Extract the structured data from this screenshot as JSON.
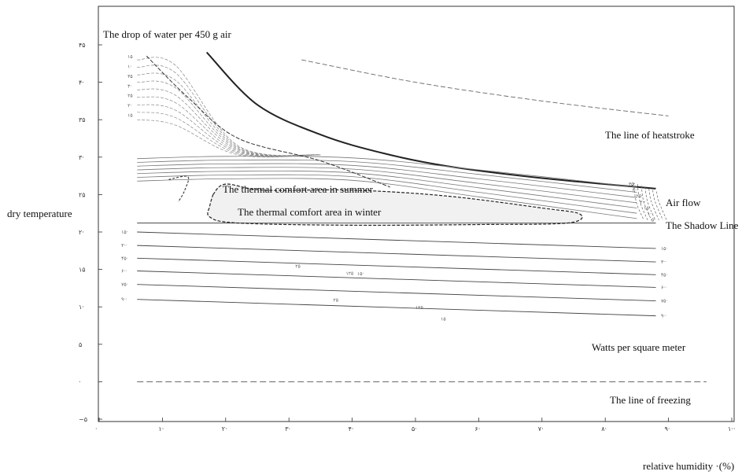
{
  "chart_data": {
    "type": "bioclimatic-chart",
    "xlabel": "relative humidity ·(%)",
    "ylabel": "dry temperature",
    "x_tick_labels": [
      "·",
      "۱·",
      "۲·",
      "۳·",
      "۴·",
      "۵·",
      "۶·",
      "۷·",
      "۸·",
      "۹·",
      "۱··"
    ],
    "y_tick_labels": [
      "−۵",
      "·",
      "۵",
      "۱·",
      "۱۵",
      "۲·",
      "۲۵",
      "۳·",
      "۳۵",
      "۴·",
      "۴۵"
    ],
    "xlim": [
      0,
      100
    ],
    "ylim": [
      -5,
      45
    ],
    "annotations": {
      "water_drop": "The drop of water per 450 g air",
      "heatstroke": "The line of heatstroke",
      "summer_comfort": "The thermal comfort area in summer",
      "winter_comfort": "The thermal comfort area in winter",
      "air_flow": "Air flow",
      "shadow_line": "The Shadow Line",
      "watts": "Watts per square meter",
      "freezing": "The line of freezing"
    },
    "reference_curves": {
      "heatstroke_boundary": [
        [
          17,
          44
        ],
        [
          25,
          37
        ],
        [
          35,
          33
        ],
        [
          45,
          30.5
        ],
        [
          55,
          28.8
        ],
        [
          70,
          27.2
        ],
        [
          88,
          25.8
        ]
      ],
      "dashed_upper": [
        [
          32,
          43
        ],
        [
          50,
          40
        ],
        [
          70,
          37.5
        ],
        [
          90,
          35.5
        ]
      ],
      "shadow_line_temp": 21.2,
      "freezing_line_temp": 0,
      "freezing_range": [
        6,
        96
      ]
    },
    "radiation_lines_left": [
      "۱۵·",
      "۳··",
      "۴۵·",
      "۶··",
      "۷۵·",
      "۹··"
    ],
    "radiation_lines_right": [
      "۱۵·",
      "۳··",
      "۴۵·",
      "۶··",
      "۷۵·",
      "۹··"
    ],
    "wind_speed_labels": [
      "۳۵·",
      "۳··",
      "۲۵·",
      "۲··",
      "۱۵·",
      "۱··",
      "۵·"
    ],
    "upper_left_labels": [
      "۱۵",
      "۱·",
      "۳۵",
      "۳·",
      "۲۵",
      "۲·",
      "۱۵"
    ],
    "scattered_labels": [
      "۲۵",
      "۱۲۵",
      "۱۵·",
      "۲۵",
      "۱۲۵",
      "۱۵"
    ],
    "grid": false
  }
}
